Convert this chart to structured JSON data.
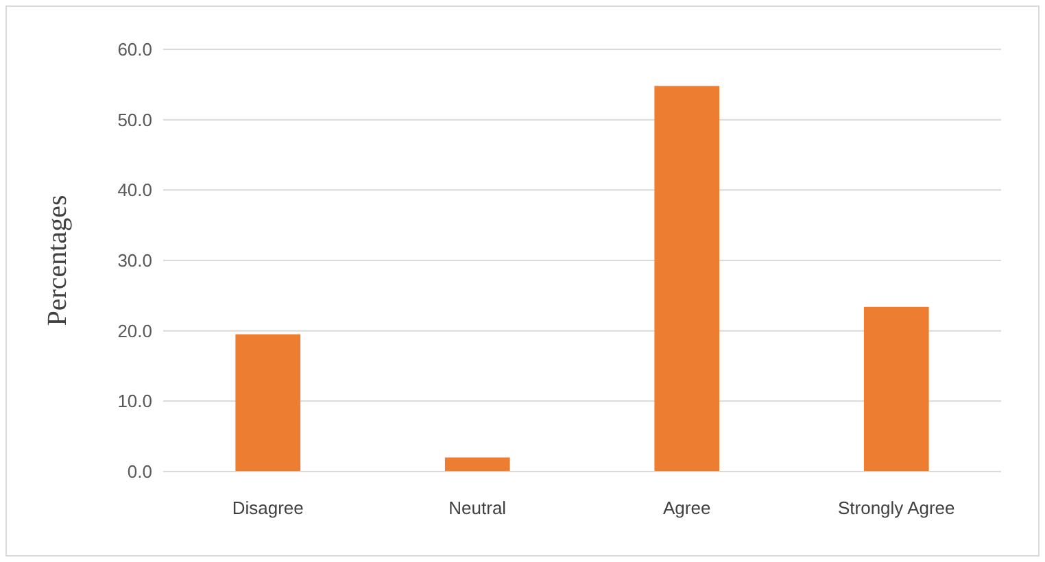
{
  "chart_data": {
    "type": "bar",
    "ylabel": "Percentages",
    "categories": [
      "Disagree",
      "Neutral",
      "Agree",
      "Strongly Agree"
    ],
    "values": [
      19.5,
      2.0,
      54.8,
      23.4
    ],
    "color": "#ed7d31",
    "ylim": [
      0,
      60
    ],
    "yticks": [
      {
        "value": 0,
        "label": "0.0"
      },
      {
        "value": 10,
        "label": "10.0"
      },
      {
        "value": 20,
        "label": "20.0"
      },
      {
        "value": 30,
        "label": "30.0"
      },
      {
        "value": 40,
        "label": "40.0"
      },
      {
        "value": 50,
        "label": "50.0"
      },
      {
        "value": 60,
        "label": "60.0"
      }
    ],
    "grid": "y"
  }
}
